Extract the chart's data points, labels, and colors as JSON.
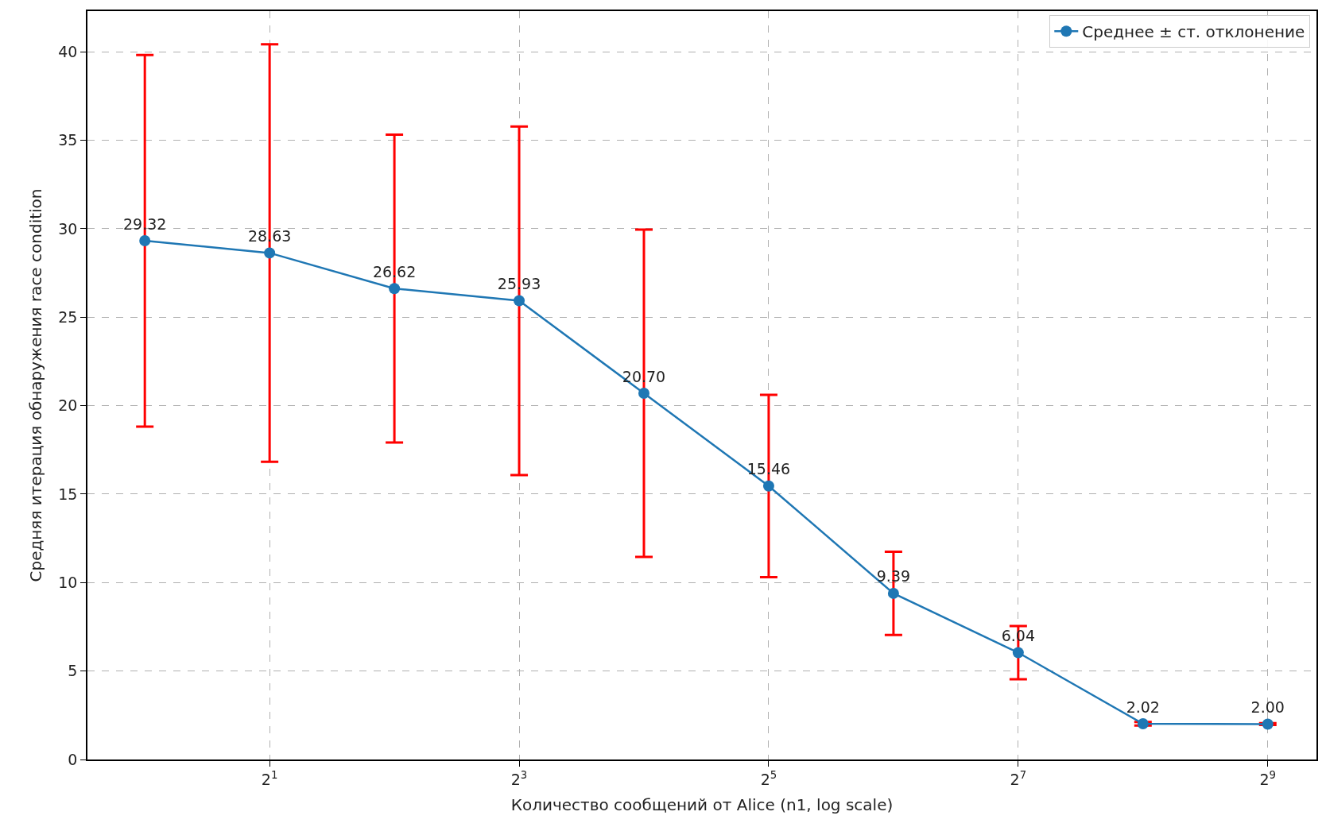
{
  "chart_data": {
    "type": "line",
    "xlabel": "Количество сообщений от Alice (n1, log scale)",
    "ylabel": "Средняя итерация обнаружения race condition",
    "x": [
      1,
      2,
      4,
      8,
      16,
      32,
      64,
      128,
      256,
      512
    ],
    "series": [
      {
        "name": "Среднее ± ст. отклонение",
        "color": "#1f77b4",
        "values": [
          29.32,
          28.63,
          26.62,
          25.93,
          20.7,
          15.46,
          9.39,
          6.04,
          2.02,
          2.0
        ],
        "errors": [
          10.5,
          11.8,
          8.7,
          9.85,
          9.25,
          5.15,
          2.35,
          1.5,
          0.1,
          0.05
        ],
        "value_labels": [
          "29.32",
          "28.63",
          "26.62",
          "25.93",
          "20.70",
          "15.46",
          "9.39",
          "6.04",
          "2.02",
          "2.00"
        ]
      }
    ],
    "log": "x",
    "xlim": [
      0.727,
      671
    ],
    "xticks": [
      {
        "value": 2,
        "label": "2$^{1}$"
      },
      {
        "value": 8,
        "label": "2$^{3}$"
      },
      {
        "value": 32,
        "label": "2$^{5}$"
      },
      {
        "value": 128,
        "label": "2$^{7}$"
      },
      {
        "value": 512,
        "label": "2$^{9}$"
      }
    ],
    "ylim": [
      0,
      42.3
    ],
    "yticks": [
      0,
      5,
      10,
      15,
      20,
      25,
      30,
      35,
      40
    ],
    "grid": true,
    "legend": "top right",
    "marker": "circle",
    "line_style": "solid"
  }
}
